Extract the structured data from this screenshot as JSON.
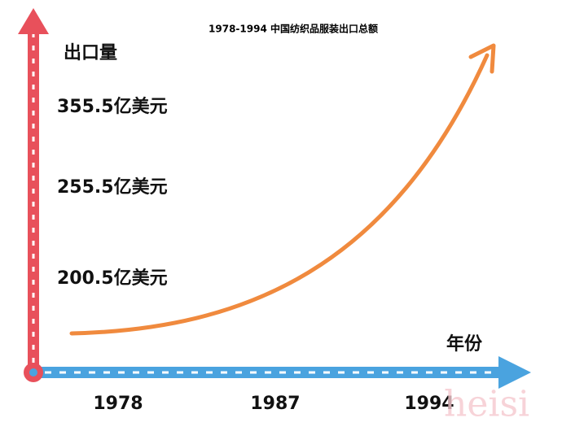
{
  "title": "1978-1994 中国纺织品服装出口总额",
  "y_axis": {
    "label": "出口量",
    "labels": [
      "355.5亿美元",
      "255.5亿美元",
      "200.5亿美元"
    ]
  },
  "x_axis": {
    "label": "年份",
    "labels": [
      "1978",
      "1987",
      "1994"
    ]
  },
  "watermark": "heisi"
}
